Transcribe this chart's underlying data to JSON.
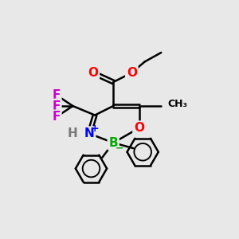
{
  "bg_color": "#e8e8e8",
  "atom_colors": {
    "C": "#000000",
    "H": "#7a7a7a",
    "N": "#0000ff",
    "O": "#ff0000",
    "F": "#cc00cc",
    "B": "#00aa00"
  },
  "bond_color": "#000000",
  "bond_width": 1.8,
  "font_size": 11
}
